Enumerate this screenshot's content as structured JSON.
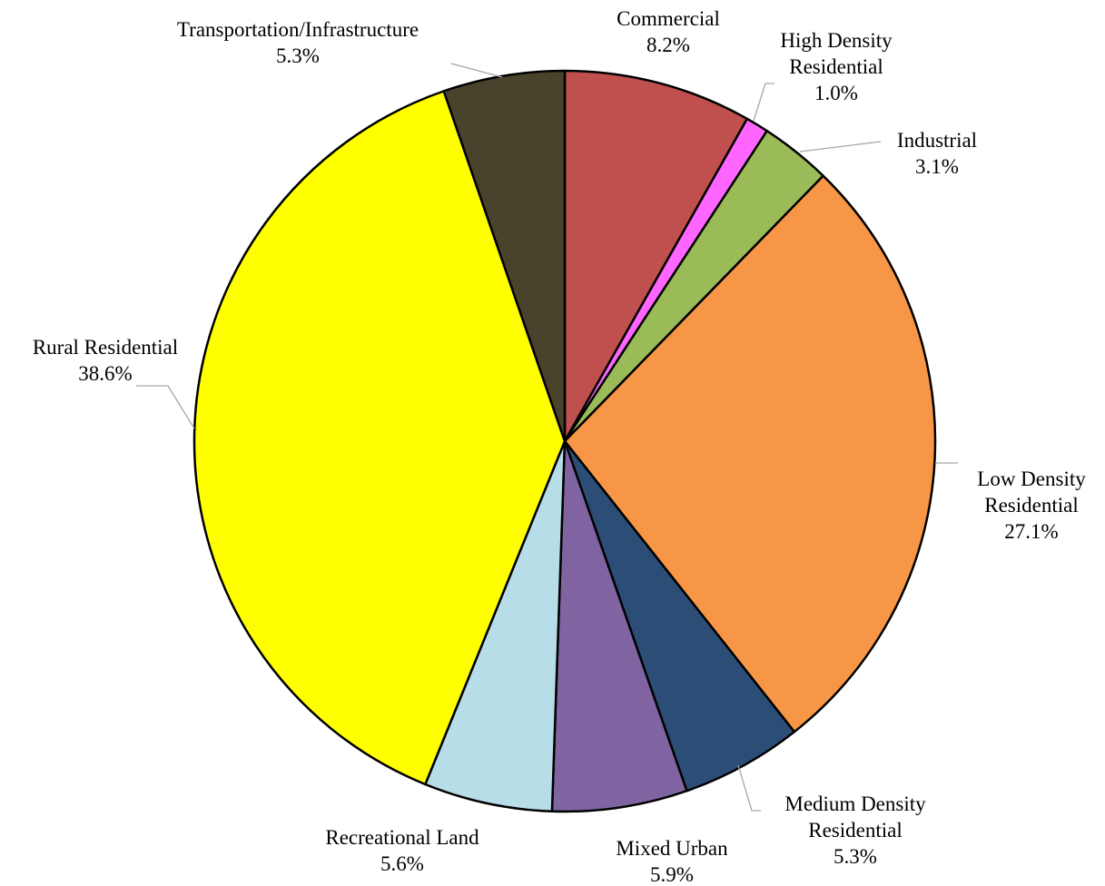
{
  "chart_data": {
    "type": "pie",
    "slices": [
      {
        "label": [
          "Commercial"
        ],
        "value": 8.2,
        "value_label": "8.2%",
        "color": "#C0504D"
      },
      {
        "label": [
          "High Density",
          "Residential"
        ],
        "value": 1.0,
        "value_label": "1.0%",
        "color": "#FF66FF"
      },
      {
        "label": [
          "Industrial"
        ],
        "value": 3.1,
        "value_label": "3.1%",
        "color": "#9BBB59"
      },
      {
        "label": [
          "Low Density",
          "Residential"
        ],
        "value": 27.1,
        "value_label": "27.1%",
        "color": "#F79646"
      },
      {
        "label": [
          "Medium Density",
          "Residential"
        ],
        "value": 5.3,
        "value_label": "5.3%",
        "color": "#2C4D75"
      },
      {
        "label": [
          "Mixed Urban"
        ],
        "value": 5.9,
        "value_label": "5.9%",
        "color": "#8064A2"
      },
      {
        "label": [
          "Recreational Land"
        ],
        "value": 5.6,
        "value_label": "5.6%",
        "color": "#B7DDE8"
      },
      {
        "label": [
          "Rural Residential"
        ],
        "value": 38.6,
        "value_label": "38.6%",
        "color": "#FFFF00"
      },
      {
        "label": [
          "Transportation/Infrastructure"
        ],
        "value": 5.3,
        "value_label": "5.3%",
        "color": "#4A432C"
      }
    ],
    "start_angle": "12 o'clock",
    "direction": "clockwise",
    "legend": "none"
  }
}
